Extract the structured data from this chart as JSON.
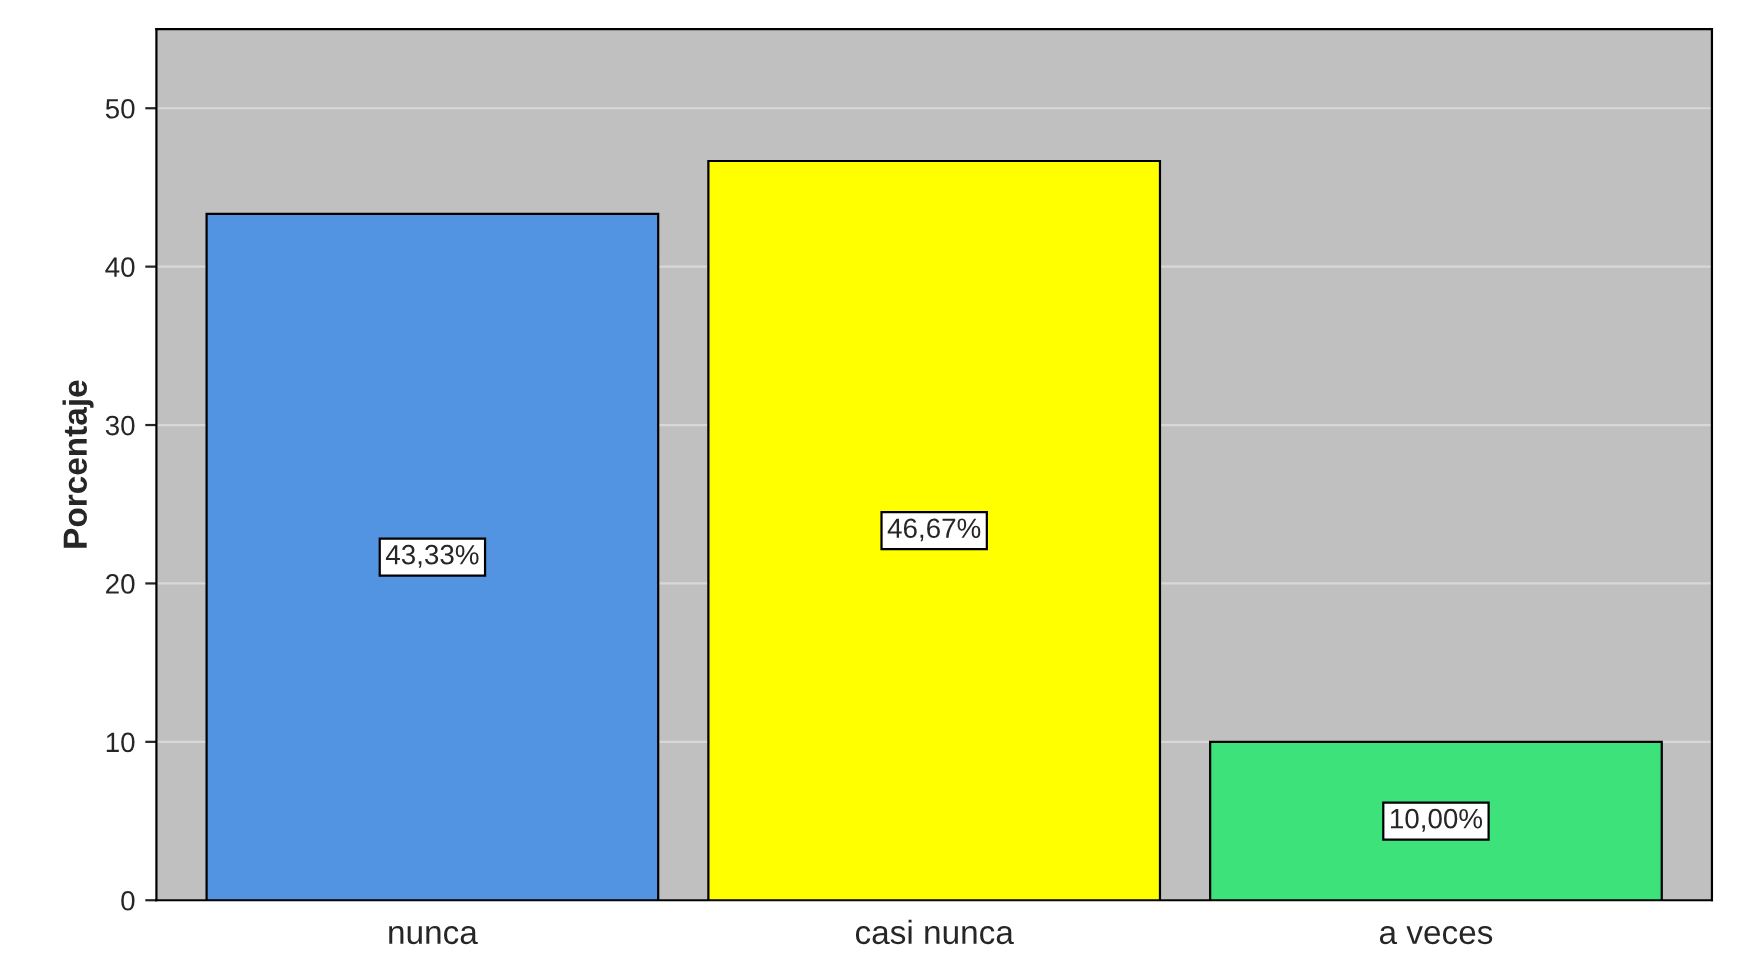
{
  "chart_data": {
    "type": "bar",
    "ylabel": "Porcentaje",
    "categories": [
      "nunca",
      "casi nunca",
      "a veces"
    ],
    "values": [
      43.33,
      46.67,
      10.0
    ],
    "colors": [
      "#5294e2",
      "#ffff00",
      "#3ee27a"
    ],
    "value_labels": [
      "43,33%",
      "46,67%",
      "10,00%"
    ],
    "ylim": [
      0,
      55
    ],
    "yticks": [
      0,
      10,
      20,
      30,
      40,
      50
    ],
    "grid": "y",
    "legend": false
  }
}
